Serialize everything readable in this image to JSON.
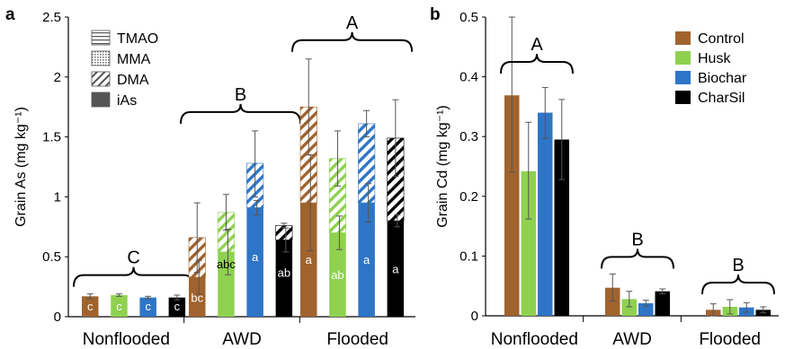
{
  "chart_data": [
    {
      "type": "bar",
      "panel": "a",
      "ylabel": "Grain As (mg kg⁻¹)",
      "ylim": [
        0,
        2.5
      ],
      "yticks": [
        "0",
        "0.5",
        "1",
        "1.5",
        "2",
        "2.5"
      ],
      "categories": [
        "Nonflooded",
        "AWD",
        "Flooded"
      ],
      "treatments": [
        "Control",
        "Husk",
        "Biochar",
        "CharSil"
      ],
      "treatment_colors": [
        "#a0632e",
        "#8fd14f",
        "#2e75c7",
        "#000000"
      ],
      "legend": [
        "TMAO",
        "MMA",
        "DMA",
        "iAs"
      ],
      "legend_placement": "top-left",
      "group_letters": [
        "C",
        "B",
        "A"
      ],
      "series": [
        {
          "name": "iAs",
          "values": [
            [
              0.17,
              0.18,
              0.16,
              0.16
            ],
            [
              0.33,
              0.54,
              0.91,
              0.64
            ],
            [
              0.95,
              0.7,
              0.95,
              0.8
            ]
          ]
        },
        {
          "name": "DMA",
          "values": [
            [
              0,
              0,
              0,
              0
            ],
            [
              0.33,
              0.33,
              0.37,
              0.12
            ],
            [
              0.8,
              0.62,
              0.66,
              0.69
            ]
          ]
        },
        {
          "name": "MMA",
          "values": [
            [
              0,
              0,
              0,
              0
            ],
            [
              0,
              0,
              0,
              0
            ],
            [
              0,
              0,
              0,
              0
            ]
          ]
        },
        {
          "name": "TMAO",
          "values": [
            [
              0,
              0,
              0,
              0
            ],
            [
              0,
              0,
              0,
              0
            ],
            [
              0,
              0,
              0,
              0
            ]
          ]
        }
      ],
      "totals": [
        [
          0.17,
          0.18,
          0.16,
          0.16
        ],
        [
          0.66,
          0.87,
          1.28,
          0.76
        ],
        [
          1.75,
          1.32,
          1.61,
          1.49
        ]
      ],
      "error_low": [
        [
          0.15,
          0.17,
          0.15,
          0.14
        ],
        [
          0.37,
          0.72,
          1.0,
          0.74
        ],
        [
          1.35,
          1.09,
          1.5,
          1.17
        ]
      ],
      "error_high": [
        [
          0.19,
          0.19,
          0.17,
          0.18
        ],
        [
          0.95,
          1.02,
          1.55,
          0.78
        ],
        [
          2.15,
          1.55,
          1.72,
          1.81
        ]
      ],
      "ias_error_low": [
        [
          0.15,
          0.17,
          0.15,
          0.14
        ],
        [
          0.19,
          0.35,
          0.85,
          0.54
        ],
        [
          0.55,
          0.56,
          0.79,
          0.75
        ]
      ],
      "ias_error_high": [
        [
          0.19,
          0.19,
          0.17,
          0.18
        ],
        [
          0.47,
          0.73,
          0.97,
          0.74
        ],
        [
          1.35,
          0.84,
          1.11,
          0.85
        ]
      ],
      "bar_letters": [
        [
          "c",
          "c",
          "c",
          "c"
        ],
        [
          "bc",
          "abc",
          "a",
          "ab"
        ],
        [
          "a",
          "ab",
          "a",
          "a"
        ]
      ],
      "bar_letter_y": [
        [
          0.09,
          0.09,
          0.09,
          0.09
        ],
        [
          0.16,
          0.44,
          0.5,
          0.37
        ],
        [
          0.48,
          0.35,
          0.48,
          0.4
        ]
      ]
    },
    {
      "type": "bar",
      "panel": "b",
      "ylabel": "Grain Cd (mg kg⁻¹)",
      "ylim": [
        0,
        0.5
      ],
      "yticks": [
        "0",
        "0.1",
        "0.2",
        "0.3",
        "0.4",
        "0.5"
      ],
      "categories": [
        "Nonflooded",
        "AWD",
        "Flooded"
      ],
      "legend_placement": "top-right",
      "group_letters": [
        "A",
        "B",
        "B"
      ],
      "series": [
        {
          "name": "Control",
          "color": "#a0632e",
          "values": [
            0.369,
            0.047,
            0.01
          ],
          "err_low": [
            0.24,
            0.025,
            0.0
          ],
          "err_high": [
            0.5,
            0.07,
            0.02
          ]
        },
        {
          "name": "Husk",
          "color": "#8fd14f",
          "values": [
            0.242,
            0.028,
            0.015
          ],
          "err_low": [
            0.162,
            0.015,
            0.003
          ],
          "err_high": [
            0.324,
            0.041,
            0.027
          ]
        },
        {
          "name": "Biochar",
          "color": "#2e75c7",
          "values": [
            0.34,
            0.021,
            0.014
          ],
          "err_low": [
            0.297,
            0.016,
            0.006
          ],
          "err_high": [
            0.382,
            0.026,
            0.022
          ]
        },
        {
          "name": "CharSil",
          "color": "#000000",
          "values": [
            0.295,
            0.041,
            0.01
          ],
          "err_low": [
            0.228,
            0.037,
            0.005
          ],
          "err_high": [
            0.362,
            0.045,
            0.015
          ]
        }
      ]
    }
  ]
}
